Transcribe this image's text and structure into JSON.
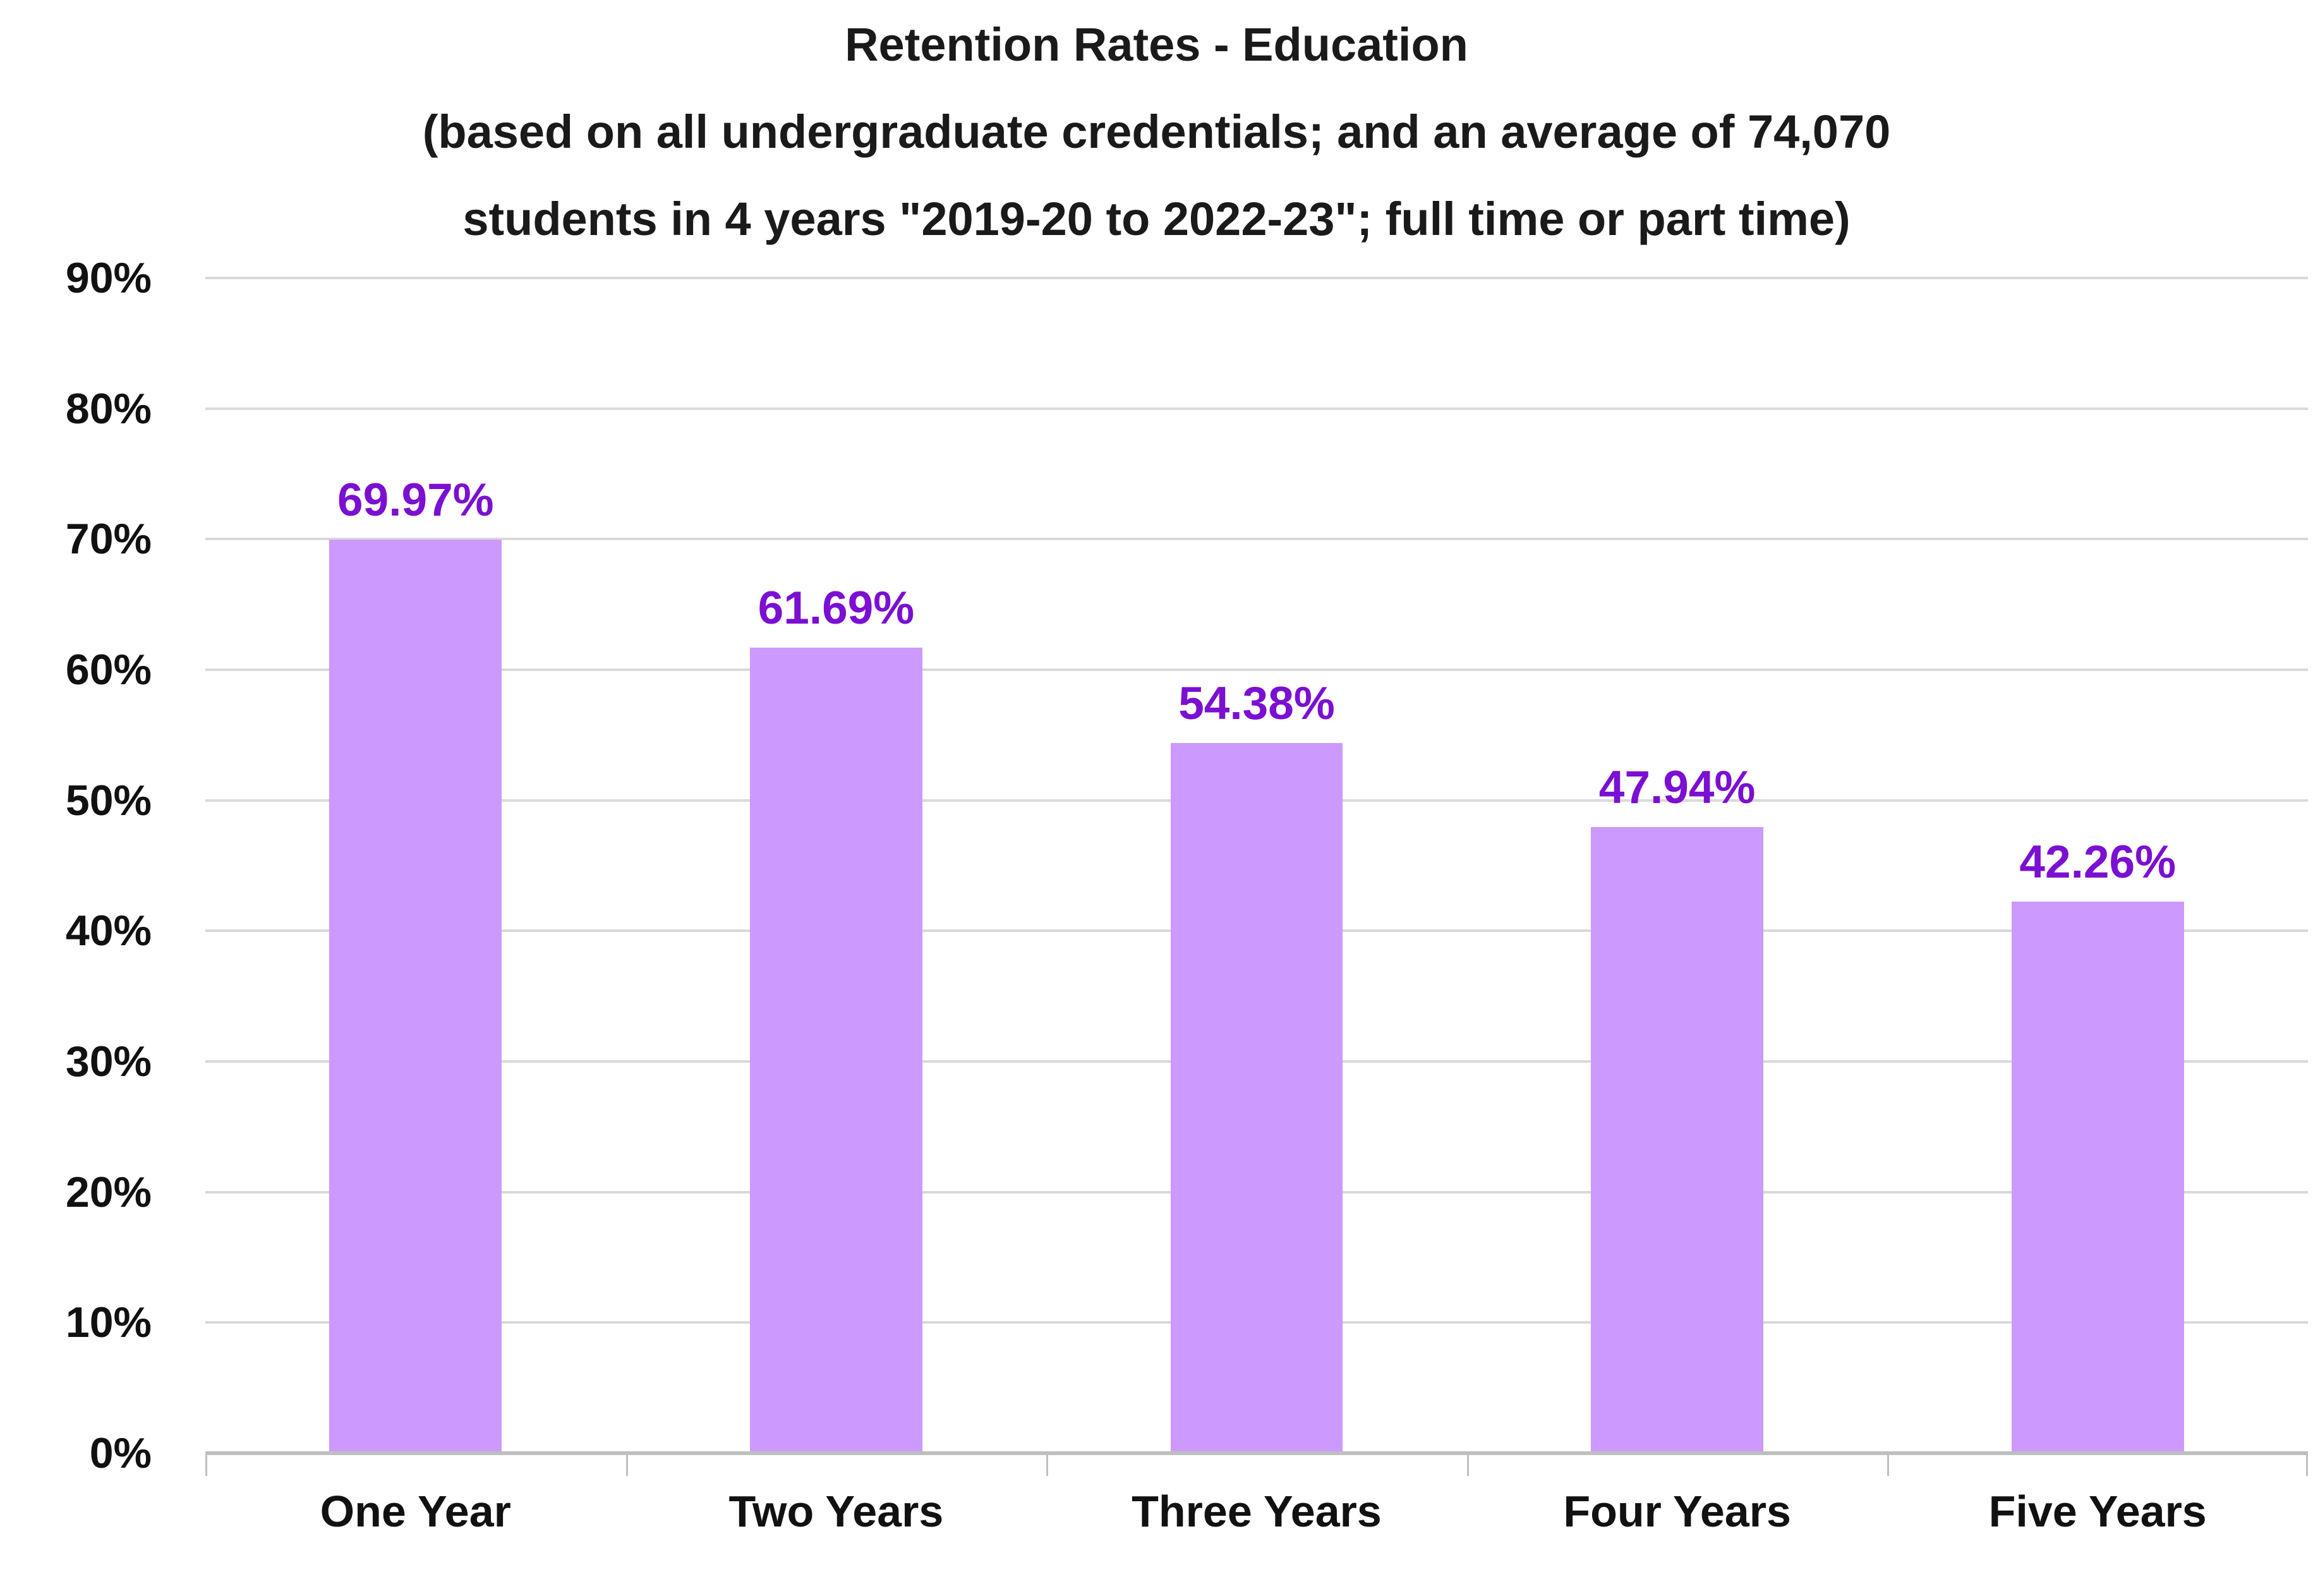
{
  "chart_data": {
    "type": "bar",
    "title": "Retention Rates - Education (based on all undergraduate credentials; and an average of 74,070 students in 4 years \"2019-20 to 2022-23\"; full time or part time)",
    "title_lines": [
      "Retention Rates - Education",
      "(based on all undergraduate credentials; and an average of 74,070",
      "students in 4 years \"2019-20 to 2022-23\"; full time or part time)"
    ],
    "categories": [
      "One Year",
      "Two Years",
      "Three Years",
      "Four Years",
      "Five Years"
    ],
    "values": [
      69.97,
      61.69,
      54.38,
      47.94,
      42.26
    ],
    "data_labels": [
      "69.97%",
      "61.69%",
      "54.38%",
      "47.94%",
      "42.26%"
    ],
    "y_ticks": [
      "90%",
      "80%",
      "70%",
      "60%",
      "50%",
      "40%",
      "30%",
      "20%",
      "10%",
      "0%"
    ],
    "ylim": [
      0,
      90
    ],
    "xlabel": "",
    "ylabel": "",
    "grid": true,
    "legend": false,
    "colors": {
      "bar_fill": "#CC99FF",
      "data_label": "#7B0FD2",
      "gridline": "#D9D9D9",
      "axis_line": "#BFBFBF",
      "text": "#111111",
      "background": "#FFFFFF"
    }
  }
}
